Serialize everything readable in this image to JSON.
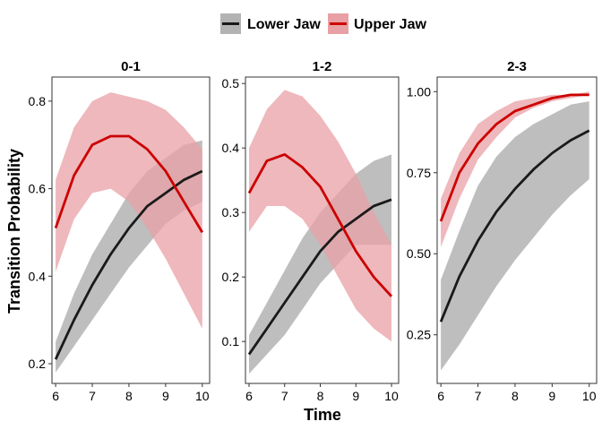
{
  "chart_data": {
    "type": "line",
    "ylabel": "Transition Probability",
    "xlabel": "Time",
    "legend_position": "top",
    "legend": [
      {
        "name": "Lower Jaw",
        "color": "#1a1a1a",
        "fill": "#b3b3b3"
      },
      {
        "name": "Upper Jaw",
        "color": "#cc0000",
        "fill": "#e8a0a5"
      }
    ],
    "x": [
      6.0,
      6.5,
      7.0,
      7.5,
      8.0,
      8.5,
      9.0,
      9.5,
      10.0
    ],
    "xlim": [
      5.9,
      10.2
    ],
    "xticks": [
      6,
      7,
      8,
      9,
      10
    ],
    "panels": [
      {
        "title": "0-1",
        "ylim": [
          0.155,
          0.855
        ],
        "yticks": [
          0.2,
          0.4,
          0.6,
          0.8
        ],
        "ytick_labels": [
          "0.2",
          "0.4",
          "0.6",
          "0.8"
        ],
        "series": [
          {
            "name": "Lower Jaw",
            "mean": [
              0.21,
              0.3,
              0.38,
              0.45,
              0.51,
              0.56,
              0.59,
              0.62,
              0.64
            ],
            "lower": [
              0.18,
              0.24,
              0.3,
              0.36,
              0.42,
              0.47,
              0.52,
              0.55,
              0.57
            ],
            "upper": [
              0.25,
              0.36,
              0.45,
              0.52,
              0.59,
              0.64,
              0.67,
              0.7,
              0.71
            ]
          },
          {
            "name": "Upper Jaw",
            "mean": [
              0.51,
              0.63,
              0.7,
              0.72,
              0.72,
              0.69,
              0.64,
              0.57,
              0.5
            ],
            "lower": [
              0.41,
              0.53,
              0.59,
              0.6,
              0.57,
              0.51,
              0.44,
              0.36,
              0.28
            ],
            "upper": [
              0.62,
              0.74,
              0.8,
              0.82,
              0.81,
              0.8,
              0.78,
              0.74,
              0.69
            ]
          }
        ]
      },
      {
        "title": "1-2",
        "ylim": [
          0.035,
          0.51
        ],
        "yticks": [
          0.1,
          0.2,
          0.3,
          0.4,
          0.5
        ],
        "ytick_labels": [
          "0.1",
          "0.2",
          "0.3",
          "0.4",
          "0.5"
        ],
        "series": [
          {
            "name": "Lower Jaw",
            "mean": [
              0.08,
              0.12,
              0.16,
              0.2,
              0.24,
              0.27,
              0.29,
              0.31,
              0.32
            ],
            "lower": [
              0.05,
              0.08,
              0.11,
              0.15,
              0.19,
              0.22,
              0.25,
              0.25,
              0.25
            ],
            "upper": [
              0.11,
              0.16,
              0.21,
              0.26,
              0.3,
              0.33,
              0.36,
              0.38,
              0.39
            ],
            "upper_extra": null
          },
          {
            "name": "Upper Jaw",
            "mean": [
              0.33,
              0.38,
              0.39,
              0.37,
              0.34,
              0.29,
              0.24,
              0.2,
              0.17
            ],
            "lower": [
              0.27,
              0.31,
              0.31,
              0.29,
              0.25,
              0.2,
              0.15,
              0.12,
              0.1
            ],
            "upper": [
              0.4,
              0.46,
              0.49,
              0.48,
              0.45,
              0.41,
              0.36,
              0.3,
              0.25
            ]
          }
        ]
      },
      {
        "title": "2-3",
        "ylim": [
          0.1,
          1.045
        ],
        "yticks": [
          0.25,
          0.5,
          0.75,
          1.0
        ],
        "ytick_labels": [
          "0.25",
          "0.50",
          "0.75",
          "1.00"
        ],
        "series": [
          {
            "name": "Lower Jaw",
            "mean": [
              0.29,
              0.43,
              0.54,
              0.63,
              0.7,
              0.76,
              0.81,
              0.85,
              0.88
            ],
            "lower": [
              0.14,
              0.22,
              0.31,
              0.4,
              0.48,
              0.55,
              0.62,
              0.68,
              0.73
            ],
            "upper": [
              0.42,
              0.57,
              0.71,
              0.8,
              0.86,
              0.9,
              0.93,
              0.96,
              0.97
            ]
          },
          {
            "name": "Upper Jaw",
            "mean": [
              0.6,
              0.75,
              0.84,
              0.9,
              0.94,
              0.96,
              0.98,
              0.99,
              0.99
            ],
            "lower": [
              0.52,
              0.67,
              0.79,
              0.86,
              0.92,
              0.95,
              0.97,
              0.98,
              0.99
            ],
            "upper": [
              0.67,
              0.81,
              0.9,
              0.94,
              0.97,
              0.98,
              0.99,
              0.99,
              1.0
            ]
          }
        ]
      }
    ]
  }
}
